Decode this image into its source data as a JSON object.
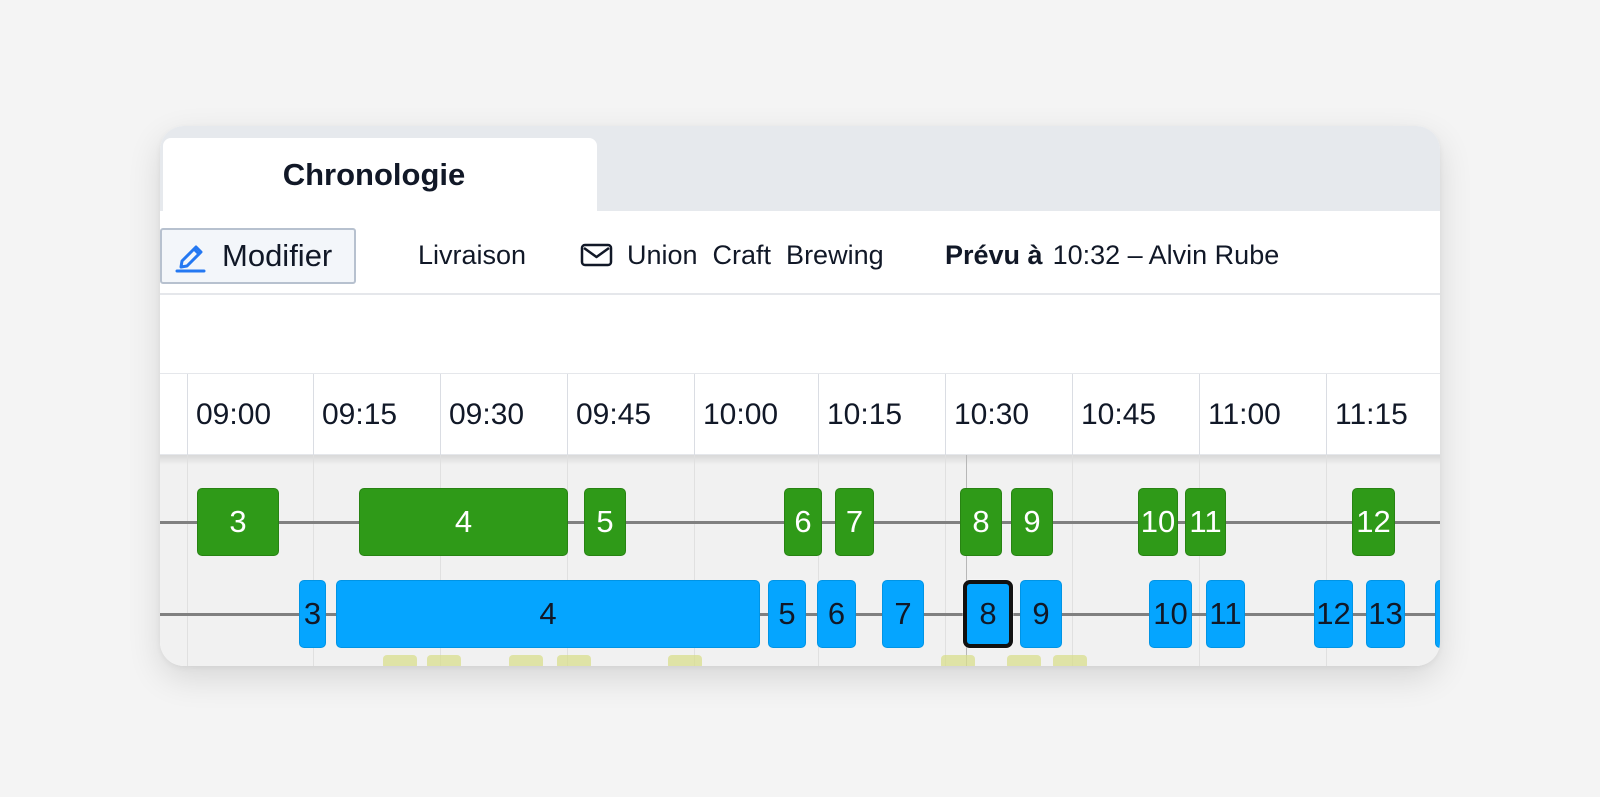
{
  "tabs": [
    {
      "label": "Chronologie"
    }
  ],
  "toolbar": {
    "edit_label": "Modifier",
    "status": "Livraison",
    "client": "Union  Craft  Brewing",
    "planned_label": "Prévu à",
    "planned_value": "10:32 – Alvin Rube"
  },
  "time_header": {
    "labels": [
      "09:00",
      "09:15",
      "09:30",
      "09:45",
      "10:00",
      "10:15",
      "10:30",
      "10:45",
      "11:00",
      "11:15"
    ]
  },
  "timeline": {
    "green_blocks": [
      {
        "label": "3"
      },
      {
        "label": "4"
      },
      {
        "label": "5"
      },
      {
        "label": "6"
      },
      {
        "label": "7"
      },
      {
        "label": "8"
      },
      {
        "label": "9"
      },
      {
        "label": "10"
      },
      {
        "label": "11"
      },
      {
        "label": "12"
      }
    ],
    "blue_blocks": [
      {
        "label": "3"
      },
      {
        "label": "4"
      },
      {
        "label": "5"
      },
      {
        "label": "6"
      },
      {
        "label": "7"
      },
      {
        "label": "8",
        "selected": true
      },
      {
        "label": "9"
      },
      {
        "label": "10"
      },
      {
        "label": "11"
      },
      {
        "label": "12"
      },
      {
        "label": "13"
      },
      {
        "label": ""
      }
    ]
  },
  "colors": {
    "green": "#2f9a18",
    "blue": "#05a5ff",
    "selection_border": "#111111",
    "track": "#808080"
  },
  "icons": {
    "edit": "pencil-icon",
    "client": "mail-icon"
  }
}
